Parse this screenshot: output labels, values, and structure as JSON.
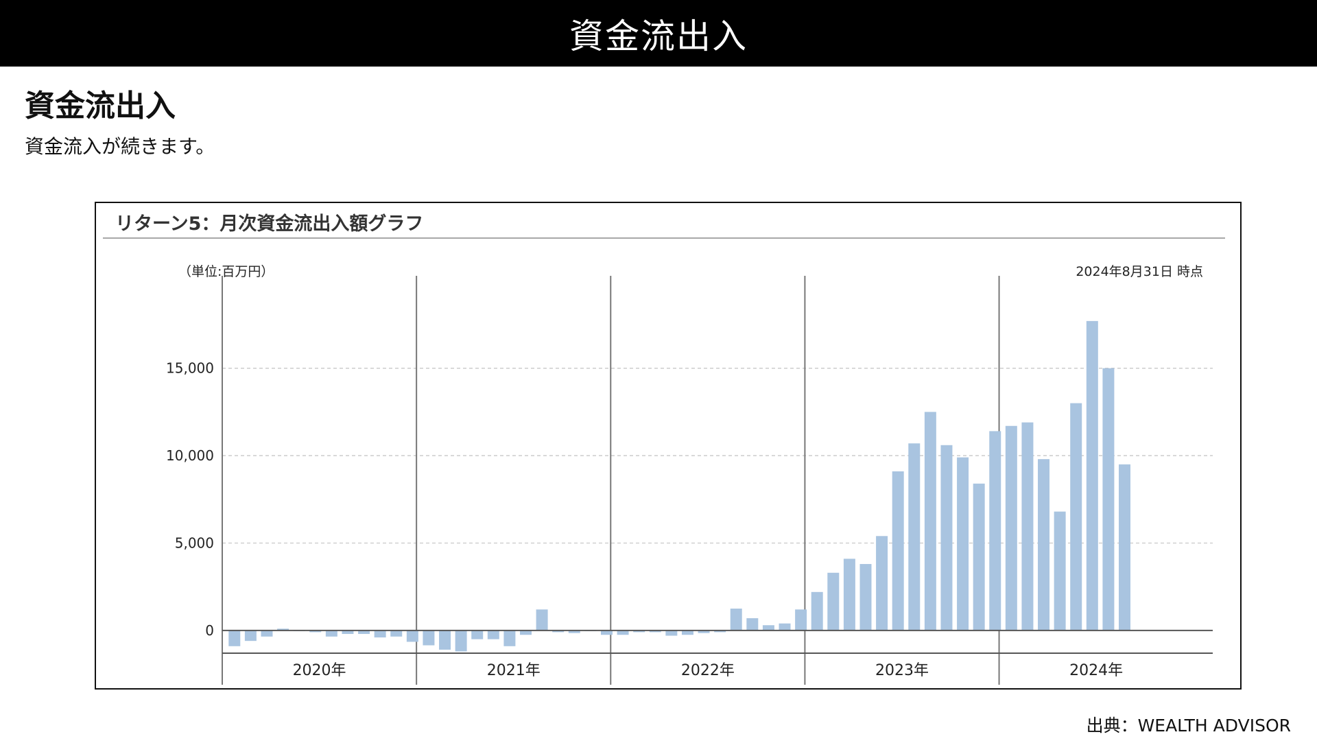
{
  "header": {
    "banner_title": "資金流出入"
  },
  "section": {
    "title": "資金流出入",
    "description": "資金流入が続きます。"
  },
  "chart": {
    "title": "リターン5：月次資金流出入額グラフ",
    "unit_note": "（単位:百万円）",
    "as_of": "2024年8月31日 時点"
  },
  "source": "出典：WEALTH ADVISOR",
  "colors": {
    "bar": "#a9c4e0",
    "axis": "#555555",
    "grid": "#c8c8c8"
  },
  "chart_data": {
    "type": "bar",
    "title": "リターン5：月次資金流出入額グラフ",
    "ylabel": "（単位:百万円）",
    "xlabel": "",
    "ylim": [
      -1300,
      19500
    ],
    "yticks": [
      0,
      5000,
      10000,
      15000
    ],
    "ytick_labels": [
      "0",
      "5,000",
      "10,000",
      "15,000"
    ],
    "grid": true,
    "years": [
      "2020年",
      "2021年",
      "2022年",
      "2023年",
      "2024年"
    ],
    "categories": [
      "2020-01",
      "2020-02",
      "2020-03",
      "2020-04",
      "2020-05",
      "2020-06",
      "2020-07",
      "2020-08",
      "2020-09",
      "2020-10",
      "2020-11",
      "2020-12",
      "2021-01",
      "2021-02",
      "2021-03",
      "2021-04",
      "2021-05",
      "2021-06",
      "2021-07",
      "2021-08",
      "2021-09",
      "2021-10",
      "2021-11",
      "2021-12",
      "2022-01",
      "2022-02",
      "2022-03",
      "2022-04",
      "2022-05",
      "2022-06",
      "2022-07",
      "2022-08",
      "2022-09",
      "2022-10",
      "2022-11",
      "2022-12",
      "2023-01",
      "2023-02",
      "2023-03",
      "2023-04",
      "2023-05",
      "2023-06",
      "2023-07",
      "2023-08",
      "2023-09",
      "2023-10",
      "2023-11",
      "2023-12",
      "2024-01",
      "2024-02",
      "2024-03",
      "2024-04",
      "2024-05",
      "2024-06",
      "2024-07",
      "2024-08"
    ],
    "values": [
      -900,
      -600,
      -350,
      100,
      0,
      -100,
      -350,
      -200,
      -200,
      -400,
      -350,
      -650,
      -850,
      -1100,
      -1200,
      -500,
      -500,
      -900,
      -250,
      1200,
      -100,
      -150,
      0,
      -250,
      -250,
      -100,
      -100,
      -300,
      -250,
      -150,
      -100,
      1250,
      700,
      300,
      400,
      1200,
      2200,
      3300,
      4100,
      3800,
      5400,
      9100,
      10700,
      12500,
      10600,
      9900,
      8400,
      11400,
      11700,
      11900,
      9800,
      6800,
      13000,
      17700,
      15000,
      9500
    ]
  }
}
